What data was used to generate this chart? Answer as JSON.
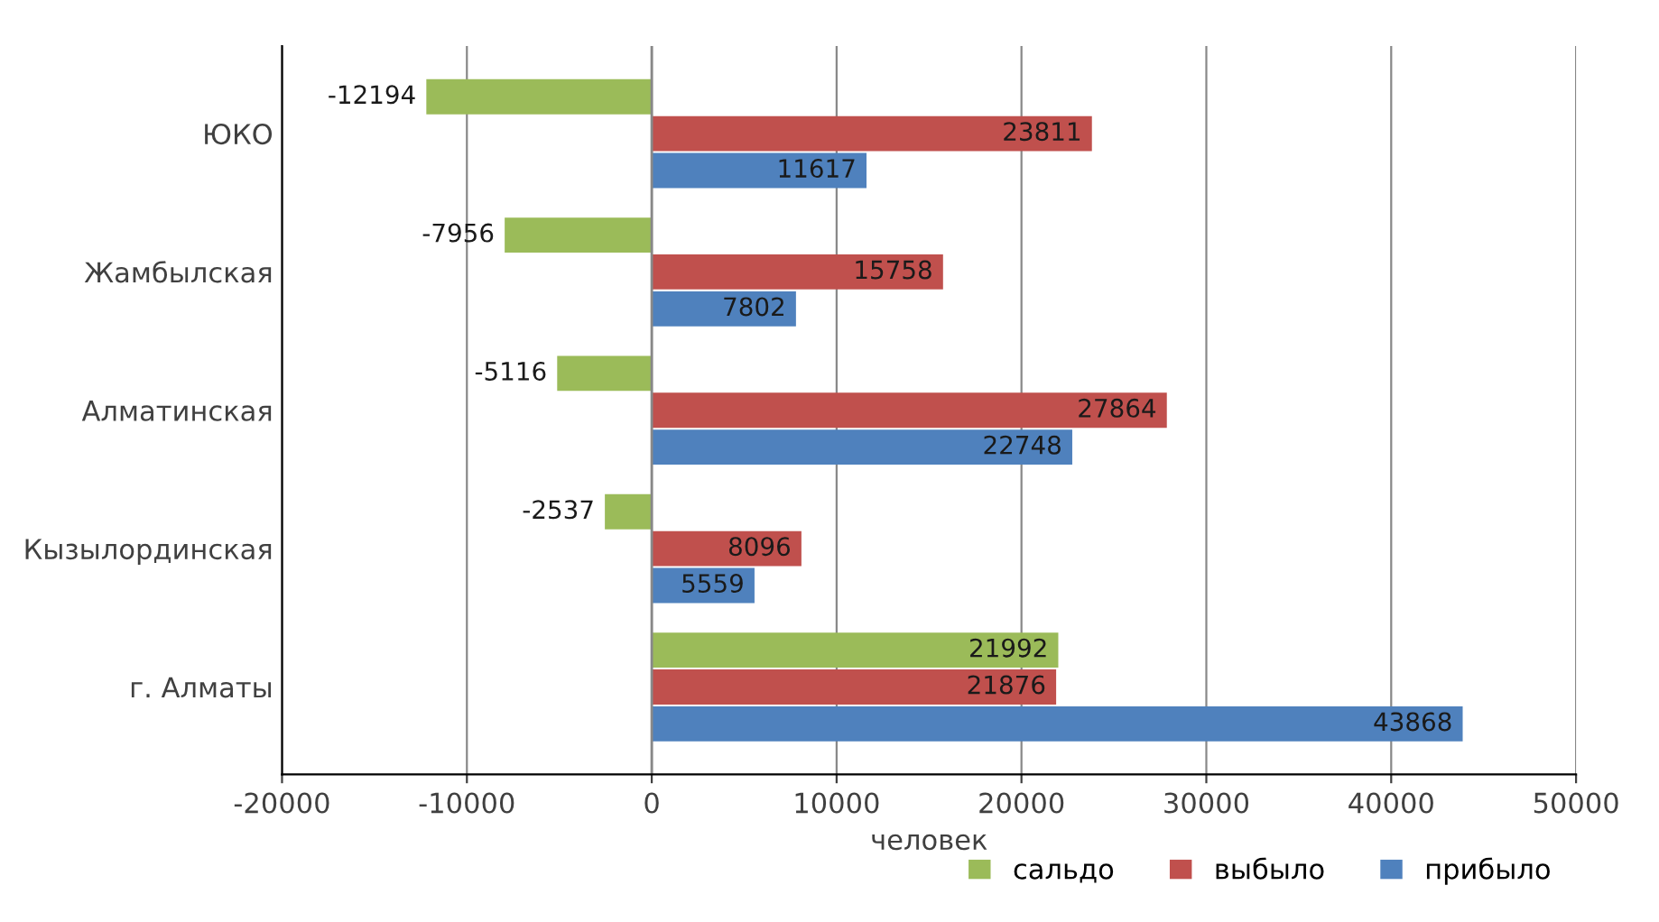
{
  "chart_data": {
    "type": "bar",
    "orientation": "horizontal",
    "categories": [
      "ЮКО",
      "Жамбылская",
      "Алматинская",
      "Кызылординская",
      "г. Алматы"
    ],
    "series": [
      {
        "name": "сальдо",
        "color": "#9bbb59",
        "values": [
          -12194,
          -7956,
          -5116,
          -2537,
          21992
        ]
      },
      {
        "name": "выбыло",
        "color": "#c0504d",
        "values": [
          23811,
          15758,
          27864,
          8096,
          21876
        ]
      },
      {
        "name": "прибыло",
        "color": "#4f81bd",
        "values": [
          11617,
          7802,
          22748,
          5559,
          43868
        ]
      }
    ],
    "xlabel": "человек",
    "xlim": [
      -20000,
      50000
    ],
    "xticks": [
      -20000,
      -10000,
      0,
      10000,
      20000,
      30000,
      40000,
      50000
    ],
    "grid": "x",
    "legend": "bottom right",
    "data_labels": true
  }
}
